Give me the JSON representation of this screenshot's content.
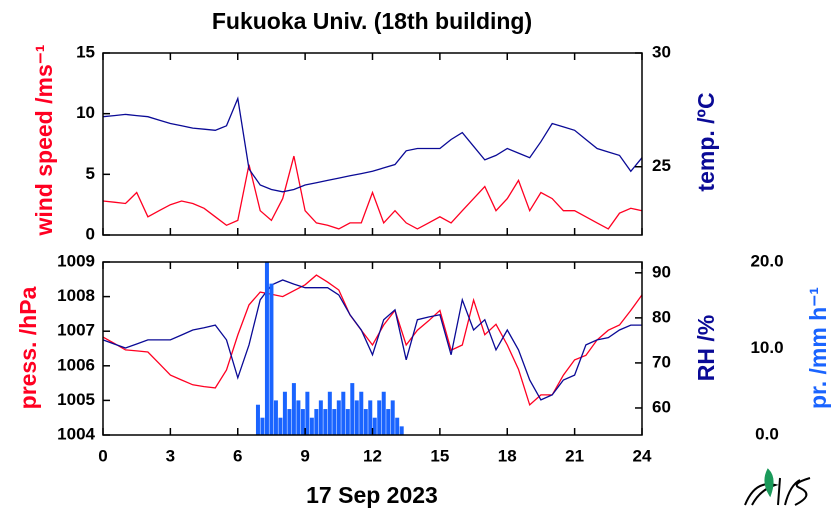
{
  "chart_data": [
    {
      "type": "line",
      "title": "Fukuoka Univ. (18th building)",
      "ylabel": "wind speed /ms⁻¹",
      "y2label": "temp. /ºC",
      "xlim": [
        0,
        24
      ],
      "ylim": [
        0,
        15
      ],
      "yticks": [
        0,
        5,
        10,
        15
      ],
      "y2lim": [
        22,
        30
      ],
      "y2ticks": [
        25,
        30
      ],
      "x": [
        0,
        0.5,
        1,
        1.5,
        2,
        2.5,
        3,
        3.5,
        4,
        4.5,
        5,
        5.5,
        6,
        6.5,
        7,
        7.5,
        8,
        8.5,
        9,
        9.5,
        10,
        10.5,
        11,
        11.5,
        12,
        12.5,
        13,
        13.5,
        14,
        14.5,
        15,
        15.5,
        16,
        16.5,
        17,
        17.5,
        18,
        18.5,
        19,
        19.5,
        20,
        20.5,
        21,
        21.5,
        22,
        22.5,
        23,
        23.5,
        24
      ],
      "series": [
        {
          "color": "#ff0022",
          "axis": "y",
          "values": [
            2.8,
            2.7,
            2.6,
            3.5,
            1.5,
            2.0,
            2.5,
            2.8,
            2.6,
            2.2,
            1.5,
            0.8,
            1.2,
            5.8,
            2.0,
            1.2,
            3.0,
            6.5,
            2.0,
            1.0,
            0.8,
            0.5,
            1.0,
            1.0,
            3.5,
            1.0,
            2.0,
            1.0,
            0.5,
            1.0,
            1.5,
            1.0,
            2.0,
            3.0,
            4.0,
            2.0,
            3.0,
            4.5,
            2.0,
            3.5,
            3.0,
            2.0,
            2.0,
            1.5,
            1.0,
            0.5,
            1.8,
            2.2,
            2.0
          ]
        },
        {
          "color": "#0a0a96",
          "axis": "y2",
          "values": [
            27.2,
            27.25,
            27.3,
            27.25,
            27.2,
            27.05,
            26.9,
            26.8,
            26.7,
            26.65,
            26.6,
            26.8,
            28.0,
            24.9,
            24.2,
            24.0,
            23.9,
            24.0,
            24.2,
            24.3,
            24.4,
            24.5,
            24.6,
            24.7,
            24.8,
            24.95,
            25.1,
            25.7,
            25.8,
            25.8,
            25.8,
            26.2,
            26.5,
            25.9,
            25.3,
            25.5,
            25.8,
            25.6,
            25.4,
            26.1,
            26.9,
            26.75,
            26.6,
            26.2,
            25.8,
            25.65,
            25.5,
            24.8,
            25.4
          ]
        }
      ]
    },
    {
      "type": "line",
      "ylabel": "press. /hPa",
      "y2label": "RH /%",
      "y3label": "pr. /mm h⁻¹",
      "xlabel": "17 Sep 2023",
      "xlim": [
        0,
        24
      ],
      "xticks": [
        0,
        3,
        6,
        9,
        12,
        15,
        18,
        21,
        24
      ],
      "ylim": [
        1004,
        1009
      ],
      "yticks": [
        1004,
        1005,
        1006,
        1007,
        1008,
        1009
      ],
      "y2lim": [
        54,
        92.4
      ],
      "y2ticks": [
        60,
        70,
        80,
        90
      ],
      "y3lim": [
        0,
        20
      ],
      "y3ticks": [
        {
          "value": 0,
          "label": "0.0"
        },
        {
          "value": 10,
          "label": "10.0"
        },
        {
          "value": 20,
          "label": "20.0"
        }
      ],
      "x": [
        0,
        0.5,
        1,
        1.5,
        2,
        2.5,
        3,
        3.5,
        4,
        4.5,
        5,
        5.5,
        6,
        6.5,
        7,
        7.5,
        8,
        8.5,
        9,
        9.5,
        10,
        10.5,
        11,
        11.5,
        12,
        12.5,
        13,
        13.5,
        14,
        14.5,
        15,
        15.5,
        16,
        16.5,
        17,
        17.5,
        18,
        18.5,
        19,
        19.5,
        20,
        20.5,
        21,
        21.5,
        22,
        22.5,
        23,
        23.5,
        24
      ],
      "series": [
        {
          "color": "#ff0022",
          "axis": "y",
          "values": [
            1006.83,
            1006.65,
            1006.46,
            1006.43,
            1006.4,
            1006.07,
            1005.73,
            1005.59,
            1005.45,
            1005.4,
            1005.36,
            1005.88,
            1006.89,
            1007.76,
            1008.13,
            1008.07,
            1008.0,
            1008.17,
            1008.34,
            1008.62,
            1008.42,
            1008.19,
            1007.47,
            1007.03,
            1006.6,
            1007.18,
            1007.6,
            1006.6,
            1007.03,
            1007.3,
            1007.6,
            1006.45,
            1006.6,
            1007.9,
            1006.9,
            1007.2,
            1006.6,
            1005.9,
            1004.87,
            1005.16,
            1005.16,
            1005.73,
            1006.17,
            1006.3,
            1006.75,
            1007.03,
            1007.18,
            1007.6,
            1008.05
          ]
        },
        {
          "color": "#0a0a96",
          "axis": "y2",
          "values": [
            75.1,
            74.2,
            73.3,
            74.2,
            75.1,
            75.1,
            75.1,
            76.2,
            77.3,
            77.8,
            78.4,
            75.1,
            66.7,
            74.0,
            84.0,
            87.3,
            88.4,
            87.5,
            86.7,
            86.7,
            86.7,
            85.1,
            80.7,
            77.3,
            71.8,
            79.6,
            81.8,
            70.7,
            79.6,
            80.2,
            80.7,
            71.8,
            84.0,
            77.3,
            79.6,
            72.9,
            77.3,
            72.9,
            66.2,
            61.8,
            62.9,
            66.2,
            67.3,
            74.0,
            75.1,
            75.6,
            77.3,
            78.4,
            78.4
          ]
        },
        {
          "color": "#1a64ff",
          "axis": "y3",
          "chart": "bar",
          "x": [
            6.9,
            7.1,
            7.3,
            7.5,
            7.7,
            7.9,
            8.1,
            8.3,
            8.5,
            8.7,
            8.9,
            9.1,
            9.3,
            9.5,
            9.7,
            9.9,
            10.1,
            10.3,
            10.5,
            10.7,
            10.9,
            11.1,
            11.3,
            11.5,
            11.7,
            11.9,
            12.1,
            12.3,
            12.5,
            12.7,
            12.9,
            13.1,
            13.3
          ],
          "values": [
            3.5,
            2,
            20,
            17.5,
            4,
            2,
            5,
            3,
            6,
            4,
            3,
            5,
            2,
            3,
            4,
            3,
            5,
            3,
            4,
            5,
            3,
            6,
            4,
            5,
            3,
            4,
            2,
            4,
            5,
            3,
            4,
            2,
            1
          ]
        }
      ]
    }
  ]
}
